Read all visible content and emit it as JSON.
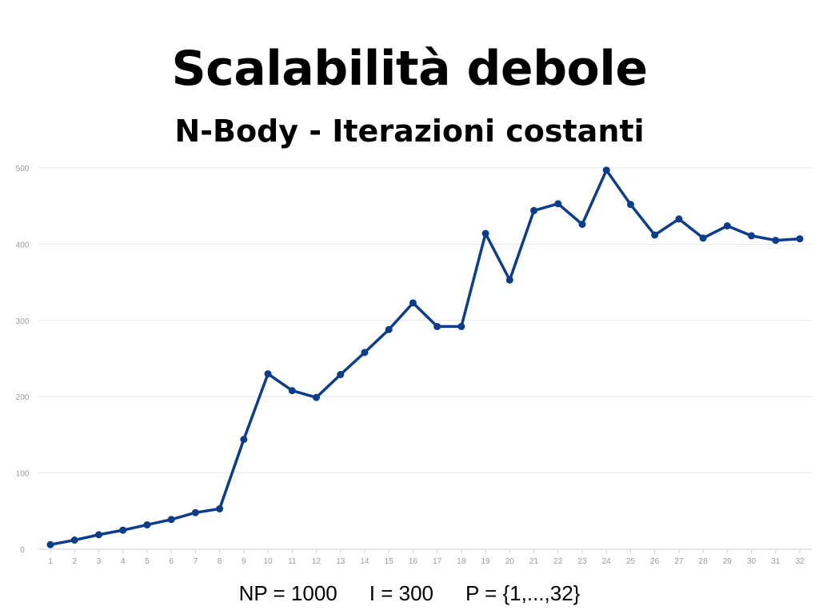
{
  "title": "Scalabilità debole",
  "subtitle": "N-Body - Iterazioni costanti",
  "caption": {
    "np": "NP = 1000",
    "i": "I = 300",
    "p": "P = {1,...,32}"
  },
  "colors": {
    "series": "#0b3d8c",
    "grid": "#e6e6e6",
    "tick_text": "#9a9a9a",
    "axis": "#cfcfcf"
  },
  "chart_data": {
    "type": "line",
    "title": "Scalabilità debole",
    "subtitle": "N-Body - Iterazioni costanti",
    "xlabel": "",
    "ylabel": "",
    "x": [
      1,
      2,
      3,
      4,
      5,
      6,
      7,
      8,
      9,
      10,
      11,
      12,
      13,
      14,
      15,
      16,
      17,
      18,
      19,
      20,
      21,
      22,
      23,
      24,
      25,
      26,
      27,
      28,
      29,
      30,
      31,
      32
    ],
    "series": [
      {
        "values": [
          6,
          12,
          19,
          25,
          32,
          39,
          48,
          53,
          144,
          230,
          208,
          199,
          229,
          258,
          288,
          323,
          292,
          292,
          414,
          353,
          444,
          453,
          426,
          497,
          452,
          412,
          433,
          408,
          424,
          411,
          405,
          407
        ]
      }
    ],
    "ylim": [
      0,
      500
    ],
    "yticks": [
      0,
      100,
      200,
      300,
      400,
      500
    ],
    "grid": true,
    "markers": true
  }
}
